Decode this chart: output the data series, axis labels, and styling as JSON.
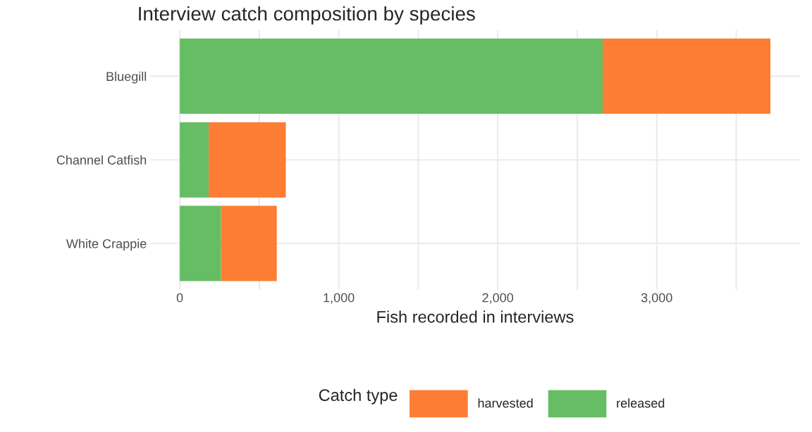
{
  "chart_data": {
    "type": "bar",
    "title": "Interview catch composition by species",
    "xlabel": "Fish recorded in interviews",
    "legend_title": "Catch type",
    "orientation": "horizontal",
    "stacked": true,
    "categories": [
      "Bluegill",
      "Channel Catfish",
      "White Crappie"
    ],
    "series": [
      {
        "name": "released",
        "color": "#66bd63",
        "values": [
          2660,
          182,
          260
        ]
      },
      {
        "name": "harvested",
        "color": "#fc7d33",
        "values": [
          1055,
          485,
          350
        ]
      }
    ],
    "xlim": [
      -186,
      3900
    ],
    "xticks": [
      0,
      {
        "value": 500,
        "label": null
      },
      {
        "value": 1000,
        "label": "1,000"
      },
      {
        "value": 1500,
        "label": null
      },
      {
        "value": 2000,
        "label": "2,000"
      },
      {
        "value": 2500,
        "label": null
      },
      {
        "value": 3000,
        "label": "3,000"
      },
      {
        "value": 3500,
        "label": null
      }
    ],
    "grid": true,
    "legend": "bottom"
  }
}
